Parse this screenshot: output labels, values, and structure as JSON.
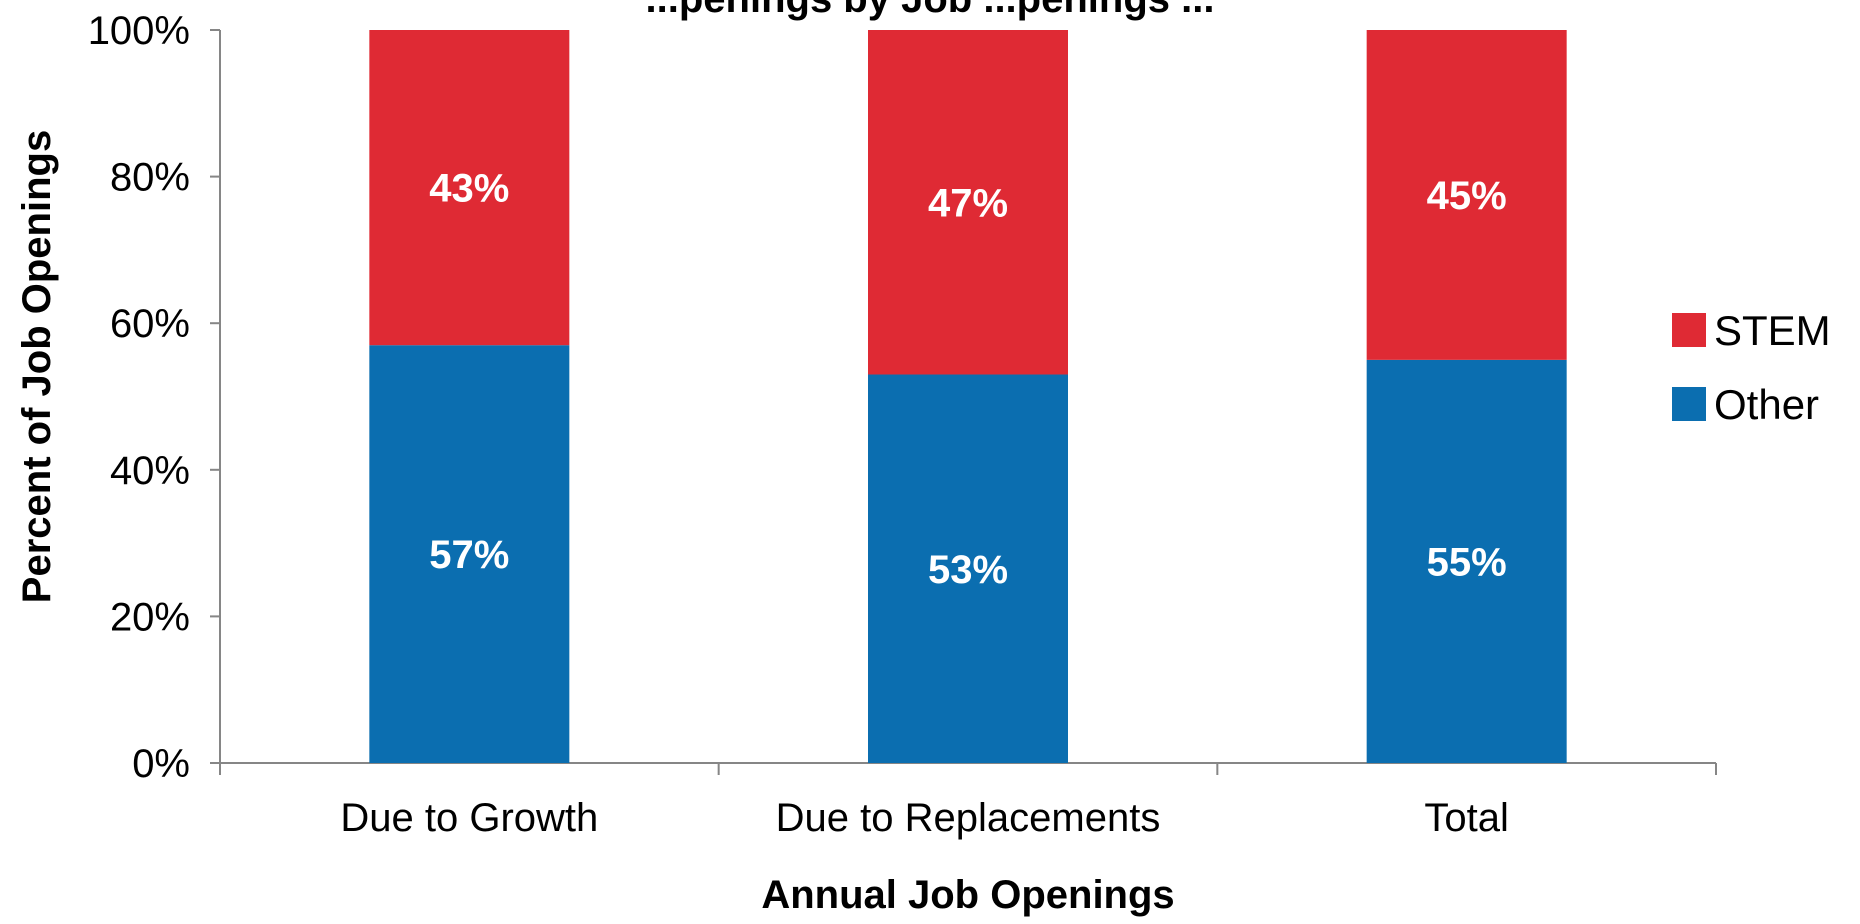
{
  "chart_data": {
    "type": "bar",
    "stacked": true,
    "title": "...penings by Job ...penings ...",
    "xlabel": "Annual Job Openings",
    "ylabel": "Percent of Job Openings",
    "categories": [
      "Due to Growth",
      "Due to Replacements",
      "Total"
    ],
    "series": [
      {
        "name": "Other",
        "values": [
          57,
          53,
          55
        ],
        "labels": [
          "57%",
          "53%",
          "55%"
        ],
        "color": "#0b6eb0"
      },
      {
        "name": "STEM",
        "values": [
          43,
          47,
          45
        ],
        "labels": [
          "43%",
          "47%",
          "45%"
        ],
        "color": "#df2a34"
      }
    ],
    "ylim": [
      0,
      100
    ],
    "yticks": [
      "0%",
      "20%",
      "40%",
      "60%",
      "80%",
      "100%"
    ],
    "legend_position": "right",
    "grid": false
  }
}
